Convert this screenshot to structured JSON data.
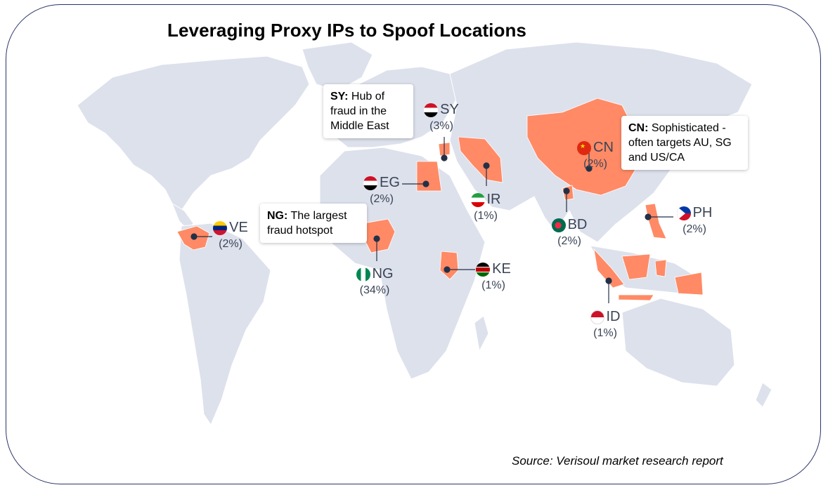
{
  "title": "Leveraging Proxy IPs to Spoof Locations",
  "source": "Source: Verisoul market research report",
  "colors": {
    "land": "#dde1ec",
    "highlight": "#ff8a65",
    "marker": "#243047",
    "text": "#3a4456"
  },
  "countries": [
    {
      "code": "SY",
      "pct": "(3%)",
      "flag": "syria-flag-icon"
    },
    {
      "code": "CN",
      "pct": "(2%)",
      "flag": "china-flag-icon"
    },
    {
      "code": "EG",
      "pct": "(2%)",
      "flag": "egypt-flag-icon"
    },
    {
      "code": "IR",
      "pct": "(1%)",
      "flag": "iran-flag-icon"
    },
    {
      "code": "VE",
      "pct": "(2%)",
      "flag": "venezuela-flag-icon"
    },
    {
      "code": "NG",
      "pct": "(34%)",
      "flag": "nigeria-flag-icon"
    },
    {
      "code": "BD",
      "pct": "(2%)",
      "flag": "bangladesh-flag-icon"
    },
    {
      "code": "PH",
      "pct": "(2%)",
      "flag": "philippines-flag-icon"
    },
    {
      "code": "KE",
      "pct": "(1%)",
      "flag": "kenya-flag-icon"
    },
    {
      "code": "ID",
      "pct": "(1%)",
      "flag": "indonesia-flag-icon"
    }
  ],
  "callouts": {
    "sy": {
      "bold": "SY:",
      "text": " Hub of fraud in the Middle East"
    },
    "cn": {
      "bold": "CN:",
      "text": " Sophisticated - often targets AU, SG and US/CA"
    },
    "ng": {
      "bold": "NG:",
      "text": " The largest fraud hotspot"
    }
  }
}
